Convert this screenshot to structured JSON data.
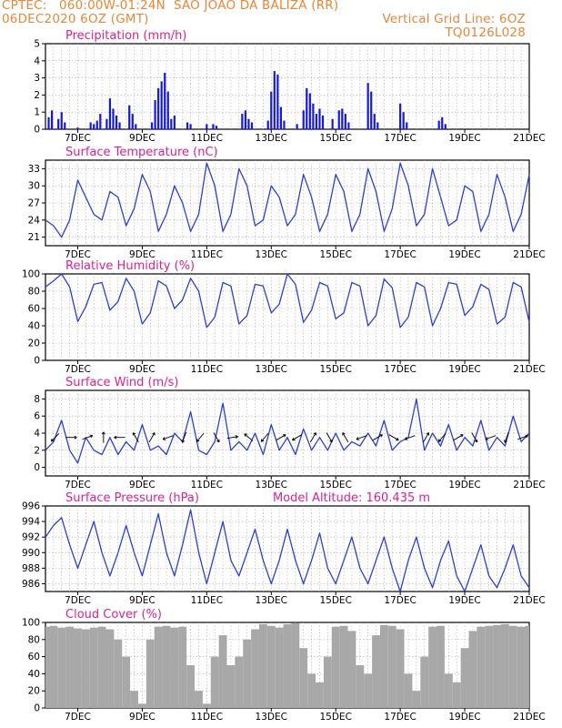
{
  "header": {
    "line1_left": "CPTEC:   060:00W-01:24N  SAO JOAO DA BALIZA (RR)",
    "line2_left": "06DEC2020 6OZ (GMT)",
    "line2_right": "Vertical Grid Line: 6OZ",
    "line3_right": "TQ0126L028"
  },
  "colors": {
    "header": "#e8863a",
    "title": "#e0208f",
    "line": "#2b3fd8",
    "bar": "#1418e6",
    "cloud": "#a8a8a8",
    "grid": "#9a9a9a"
  },
  "x_axis": {
    "tick_labels": [
      "7DEC",
      "9DEC",
      "11DEC",
      "13DEC",
      "15DEC",
      "17DEC",
      "19DEC",
      "21DEC"
    ],
    "tick_days": [
      7,
      9,
      11,
      13,
      15,
      17,
      19,
      21
    ],
    "range_days": [
      6,
      21
    ]
  },
  "panels": {
    "precip": {
      "title": "Precipitation (mm/h)"
    },
    "temp": {
      "title": "Surface Temperature (nC)"
    },
    "rh": {
      "title": "Relative Humidity (%)"
    },
    "wind": {
      "title": "Surface Wind (m/s)"
    },
    "pressure": {
      "title": "Surface Pressure (hPa)",
      "extra": "Model Altitude: 160.435 m"
    },
    "cloud": {
      "title": "Cloud Cover (%)"
    }
  },
  "chart_data": [
    {
      "type": "bar",
      "title": "Precipitation (mm/h)",
      "ylim": [
        0,
        5
      ],
      "yticks": [
        0,
        1,
        2,
        3,
        4,
        5
      ],
      "x_unit": "day of December 2020",
      "x": [
        6.1,
        6.2,
        6.4,
        6.5,
        6.6,
        7.0,
        7.4,
        7.5,
        7.6,
        7.7,
        7.9,
        8.0,
        8.1,
        8.2,
        8.3,
        8.6,
        8.7,
        8.8,
        9.3,
        9.4,
        9.5,
        9.6,
        9.7,
        9.8,
        9.9,
        10.0,
        10.4,
        10.5,
        11.0,
        11.2,
        11.3,
        12.1,
        12.2,
        12.3,
        12.4,
        12.9,
        13.0,
        13.1,
        13.2,
        13.3,
        13.4,
        13.8,
        14.0,
        14.1,
        14.2,
        14.3,
        14.4,
        14.5,
        14.6,
        14.9,
        15.1,
        15.2,
        15.3,
        15.4,
        16.0,
        16.1,
        16.2,
        16.3,
        17.0,
        17.1,
        17.2,
        18.2,
        18.3,
        18.4
      ],
      "values": [
        0.7,
        1.1,
        0.6,
        1.0,
        0.4,
        0.1,
        0.4,
        0.3,
        0.5,
        0.9,
        0.6,
        1.8,
        1.2,
        0.8,
        0.4,
        1.4,
        0.9,
        0.3,
        0.4,
        1.7,
        2.4,
        2.8,
        3.3,
        2.2,
        0.6,
        0.8,
        0.4,
        0.3,
        0.3,
        0.3,
        0.2,
        0.9,
        1.1,
        0.6,
        0.4,
        0.5,
        2.2,
        3.4,
        3.2,
        1.3,
        0.5,
        0.3,
        1.1,
        2.4,
        2.1,
        1.5,
        0.9,
        1.2,
        0.8,
        0.6,
        1.1,
        1.2,
        0.9,
        0.4,
        2.7,
        2.2,
        0.9,
        0.4,
        1.5,
        1.0,
        0.4,
        0.5,
        0.7,
        0.3
      ]
    },
    {
      "type": "line",
      "title": "Surface Temperature (nC)",
      "ylim": [
        19.5,
        34.5
      ],
      "yticks": [
        21,
        24,
        27,
        30,
        33
      ],
      "x_unit": "day of December 2020",
      "x": [
        6.0,
        6.25,
        6.5,
        6.75,
        7.0,
        7.25,
        7.5,
        7.75,
        8.0,
        8.25,
        8.5,
        8.75,
        9.0,
        9.25,
        9.5,
        9.75,
        10.0,
        10.25,
        10.5,
        10.75,
        11.0,
        11.25,
        11.5,
        11.75,
        12.0,
        12.25,
        12.5,
        12.75,
        13.0,
        13.25,
        13.5,
        13.75,
        14.0,
        14.25,
        14.5,
        14.75,
        15.0,
        15.25,
        15.5,
        15.75,
        16.0,
        16.25,
        16.5,
        16.75,
        17.0,
        17.25,
        17.5,
        17.75,
        18.0,
        18.25,
        18.5,
        18.75,
        19.0,
        19.25,
        19.5,
        19.75,
        20.0,
        20.25,
        20.5,
        20.75,
        21.0
      ],
      "values": [
        24,
        23,
        21,
        24,
        31,
        28,
        25,
        24,
        29,
        28,
        23,
        26,
        32,
        29,
        22,
        25,
        30,
        27,
        22,
        25,
        34,
        30,
        22,
        25,
        33,
        30,
        23,
        24,
        30,
        28,
        23,
        25,
        32,
        28,
        22,
        25,
        32,
        29,
        22,
        25,
        33,
        29,
        22,
        26,
        34,
        30,
        23,
        25,
        33,
        28,
        23,
        24,
        30,
        29,
        22,
        25,
        32,
        28,
        22,
        25,
        32
      ]
    },
    {
      "type": "line",
      "title": "Relative Humidity (%)",
      "ylim": [
        0,
        100
      ],
      "yticks": [
        0,
        20,
        40,
        60,
        80,
        100
      ],
      "x_unit": "day of December 2020",
      "x": [
        6.0,
        6.25,
        6.5,
        6.75,
        7.0,
        7.25,
        7.5,
        7.75,
        8.0,
        8.25,
        8.5,
        8.75,
        9.0,
        9.25,
        9.5,
        9.75,
        10.0,
        10.25,
        10.5,
        10.75,
        11.0,
        11.25,
        11.5,
        11.75,
        12.0,
        12.25,
        12.5,
        12.75,
        13.0,
        13.25,
        13.5,
        13.75,
        14.0,
        14.25,
        14.5,
        14.75,
        15.0,
        15.25,
        15.5,
        15.75,
        16.0,
        16.25,
        16.5,
        16.75,
        17.0,
        17.25,
        17.5,
        17.75,
        18.0,
        18.25,
        18.5,
        18.75,
        19.0,
        19.25,
        19.5,
        19.75,
        20.0,
        20.25,
        20.5,
        20.75,
        21.0
      ],
      "values": [
        85,
        92,
        100,
        85,
        45,
        62,
        88,
        90,
        58,
        68,
        95,
        80,
        42,
        55,
        92,
        86,
        60,
        70,
        95,
        80,
        38,
        50,
        90,
        86,
        42,
        52,
        88,
        86,
        55,
        65,
        100,
        88,
        44,
        58,
        90,
        86,
        48,
        55,
        90,
        86,
        40,
        52,
        94,
        84,
        38,
        50,
        90,
        85,
        40,
        60,
        90,
        88,
        52,
        62,
        88,
        82,
        42,
        50,
        90,
        85,
        44
      ]
    },
    {
      "type": "line",
      "title": "Surface Wind (m/s)",
      "ylim": [
        -1,
        9
      ],
      "yticks": [
        0,
        2,
        4,
        6,
        8
      ],
      "x_unit": "day of December 2020",
      "x": [
        6.0,
        6.25,
        6.5,
        6.75,
        7.0,
        7.25,
        7.5,
        7.75,
        8.0,
        8.25,
        8.5,
        8.75,
        9.0,
        9.25,
        9.5,
        9.75,
        10.0,
        10.25,
        10.5,
        10.75,
        11.0,
        11.25,
        11.5,
        11.75,
        12.0,
        12.25,
        12.5,
        12.75,
        13.0,
        13.25,
        13.5,
        13.75,
        14.0,
        14.25,
        14.5,
        14.75,
        15.0,
        15.25,
        15.5,
        15.75,
        16.0,
        16.25,
        16.5,
        16.75,
        17.0,
        17.25,
        17.5,
        17.75,
        18.0,
        18.25,
        18.5,
        18.75,
        19.0,
        19.25,
        19.5,
        19.75,
        20.0,
        20.25,
        20.5,
        20.75,
        21.0
      ],
      "values": [
        2,
        3,
        5.5,
        2,
        0.5,
        3.5,
        2,
        1.5,
        3.5,
        1.5,
        3,
        2,
        5,
        2,
        2.5,
        1.5,
        4,
        3,
        6.5,
        2,
        1.5,
        3,
        7.5,
        2,
        3,
        2,
        4,
        1.5,
        5,
        2,
        3.5,
        1.5,
        4.5,
        2,
        3.5,
        2,
        4,
        2,
        3,
        2.5,
        4,
        2.5,
        5.5,
        2,
        3,
        3.5,
        8,
        2,
        4,
        2.5,
        5,
        2,
        3.5,
        2.5,
        5.5,
        2,
        3.5,
        2.5,
        6,
        3,
        4
      ],
      "vector_x": [
        6.3,
        6.8,
        7.3,
        7.8,
        8.3,
        8.8,
        9.3,
        9.8,
        10.3,
        10.8,
        11.3,
        11.8,
        12.3,
        12.8,
        13.3,
        13.8,
        14.3,
        14.8,
        15.3,
        15.8,
        16.3,
        16.8,
        17.3,
        17.8,
        18.3,
        18.8,
        19.3,
        19.8,
        20.3,
        20.8
      ],
      "vector_angle_deg": [
        225,
        0,
        20,
        90,
        180,
        120,
        60,
        200,
        250,
        230,
        300,
        10,
        140,
        230,
        30,
        210,
        60,
        300,
        120,
        200,
        30,
        330,
        200,
        60,
        230,
        30,
        300,
        200,
        250,
        20
      ]
    },
    {
      "type": "line",
      "title": "Surface Pressure (hPa)",
      "ylim": [
        985,
        996
      ],
      "yticks": [
        986,
        988,
        990,
        992,
        994,
        996
      ],
      "x_unit": "day of December 2020",
      "x": [
        6.0,
        6.25,
        6.5,
        6.75,
        7.0,
        7.25,
        7.5,
        7.75,
        8.0,
        8.25,
        8.5,
        8.75,
        9.0,
        9.25,
        9.5,
        9.75,
        10.0,
        10.25,
        10.5,
        10.75,
        11.0,
        11.25,
        11.5,
        11.75,
        12.0,
        12.25,
        12.5,
        12.75,
        13.0,
        13.25,
        13.5,
        13.75,
        14.0,
        14.25,
        14.5,
        14.75,
        15.0,
        15.25,
        15.5,
        15.75,
        16.0,
        16.25,
        16.5,
        16.75,
        17.0,
        17.25,
        17.5,
        17.75,
        18.0,
        18.25,
        18.5,
        18.75,
        19.0,
        19.25,
        19.5,
        19.75,
        20.0,
        20.25,
        20.5,
        20.75,
        21.0
      ],
      "values": [
        992,
        993.5,
        994.5,
        991,
        988,
        991,
        994,
        990,
        987,
        990,
        993.5,
        990,
        987,
        991,
        995,
        990,
        987,
        991,
        995.5,
        990,
        986,
        990,
        994,
        989,
        987,
        990,
        993,
        989,
        986,
        989,
        993,
        989,
        986,
        989,
        992.5,
        988,
        986,
        989,
        992,
        988,
        986,
        989,
        992,
        988,
        985,
        989,
        992,
        988,
        985.5,
        989,
        991.5,
        987,
        985,
        988,
        991,
        987,
        985.5,
        988,
        991,
        987,
        985.5
      ]
    },
    {
      "type": "area",
      "title": "Cloud Cover (%)",
      "ylim": [
        0,
        100
      ],
      "yticks": [
        0,
        20,
        40,
        60,
        80,
        100
      ],
      "x_unit": "day of December 2020",
      "x": [
        6.0,
        6.25,
        6.5,
        6.75,
        7.0,
        7.25,
        7.5,
        7.75,
        8.0,
        8.25,
        8.5,
        8.75,
        9.0,
        9.25,
        9.5,
        9.75,
        10.0,
        10.25,
        10.5,
        10.75,
        11.0,
        11.25,
        11.5,
        11.75,
        12.0,
        12.25,
        12.5,
        12.75,
        13.0,
        13.25,
        13.5,
        13.75,
        14.0,
        14.25,
        14.5,
        14.75,
        15.0,
        15.25,
        15.5,
        15.75,
        16.0,
        16.25,
        16.5,
        16.75,
        17.0,
        17.25,
        17.5,
        17.75,
        18.0,
        18.25,
        18.5,
        18.75,
        19.0,
        19.25,
        19.5,
        19.75,
        20.0,
        20.25,
        20.5,
        20.75,
        21.0
      ],
      "values": [
        95,
        96,
        94,
        95,
        93,
        92,
        94,
        95,
        92,
        80,
        60,
        20,
        5,
        80,
        95,
        96,
        94,
        95,
        50,
        20,
        5,
        60,
        85,
        50,
        60,
        80,
        92,
        98,
        96,
        94,
        98,
        99,
        70,
        40,
        30,
        60,
        95,
        96,
        90,
        50,
        40,
        85,
        97,
        96,
        92,
        40,
        20,
        60,
        95,
        96,
        40,
        30,
        70,
        90,
        95,
        96,
        97,
        98,
        96,
        95,
        96
      ]
    }
  ]
}
